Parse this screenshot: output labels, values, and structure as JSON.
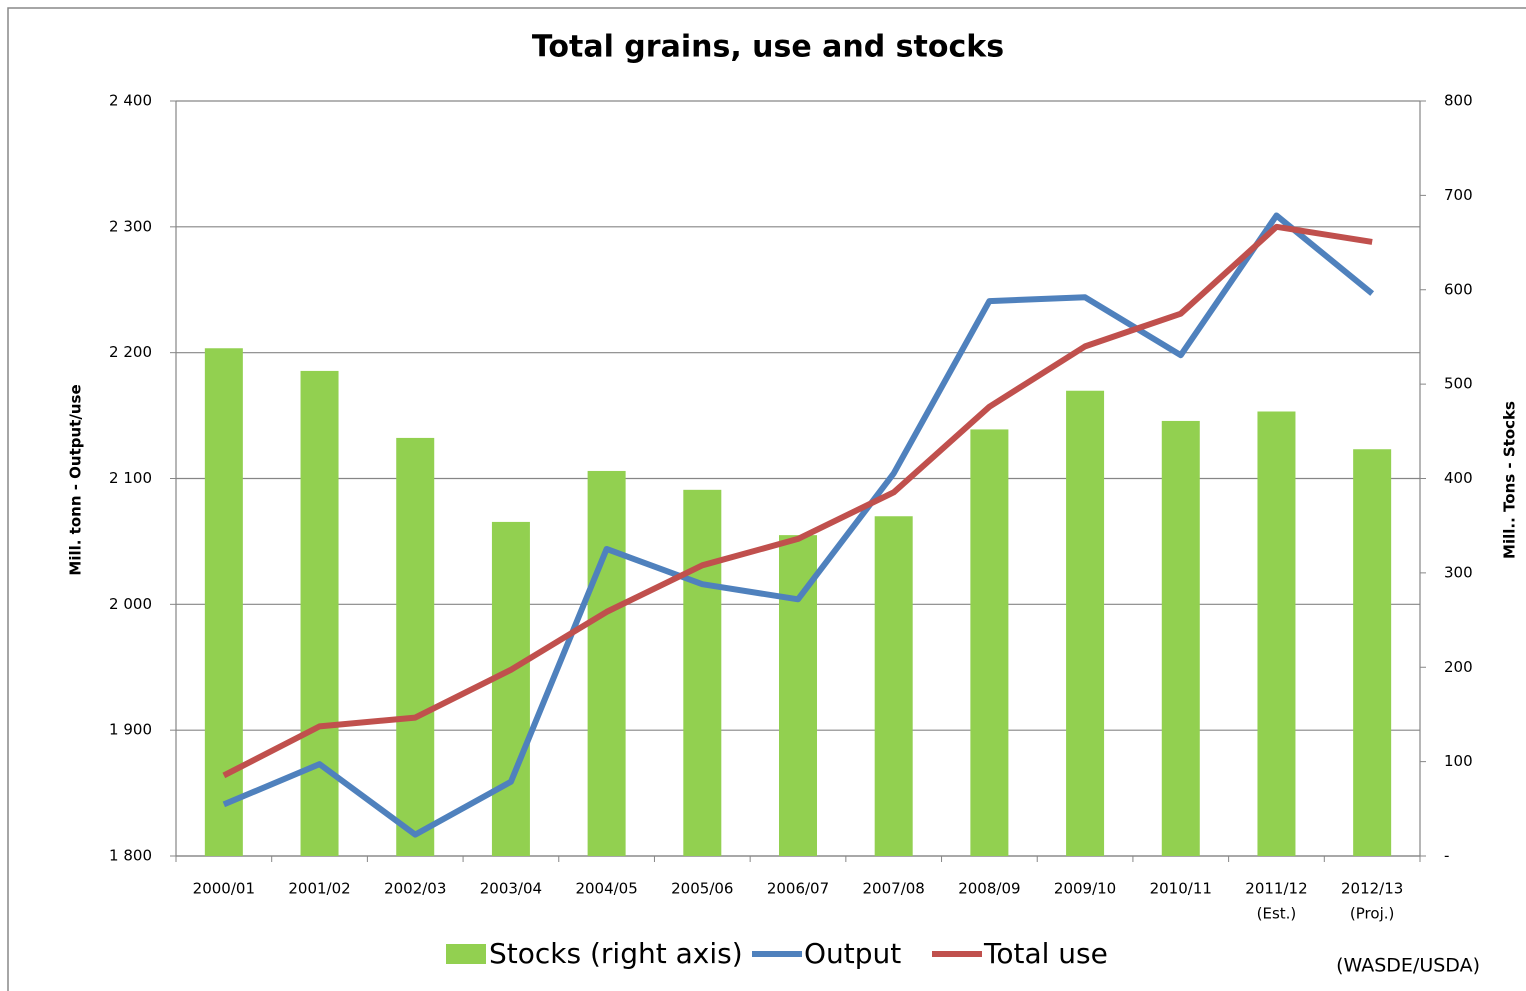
{
  "chart_data": {
    "type": "bar",
    "title": "Total grains, use and stocks",
    "y_label": "Mill. tonn - Output/use",
    "y2_label": "Mill.. Tons - Stocks",
    "source": "(WASDE/USDA)",
    "categories": [
      "2000/01",
      "2001/02",
      "2002/03",
      "2003/04",
      "2004/05",
      "2005/06",
      "2006/07",
      "2007/08",
      "2008/09",
      "2009/10",
      "2010/11",
      "2011/12",
      "2012/13"
    ],
    "category_notes": [
      null,
      null,
      null,
      null,
      null,
      null,
      null,
      null,
      null,
      null,
      null,
      "(Est.)",
      "(Proj.)"
    ],
    "series": [
      {
        "name": "Stocks (right axis)",
        "type": "bar",
        "axis": "y2",
        "color": "#92d050",
        "values": [
          538,
          514,
          443,
          354,
          408,
          388,
          340,
          360,
          452,
          493,
          461,
          471,
          431
        ]
      },
      {
        "name": "Output",
        "type": "line",
        "color": "#4f81bd",
        "values": [
          1841,
          1873,
          1817,
          1859,
          2044,
          2016,
          2004,
          2104,
          2241,
          2244,
          2198,
          2309,
          2247
        ]
      },
      {
        "name": "Total use",
        "type": "line",
        "color": "#c0504d",
        "values": [
          1864,
          1903,
          1910,
          1948,
          1994,
          2031,
          2052,
          2089,
          2157,
          2205,
          2231,
          2300,
          2288
        ]
      }
    ],
    "ylim": [
      1800,
      2400
    ],
    "yticks": [
      {
        "value": 1800,
        "label": "1 800"
      },
      {
        "value": 1900,
        "label": "1 900"
      },
      {
        "value": 2000,
        "label": "2 000"
      },
      {
        "value": 2100,
        "label": "2 100"
      },
      {
        "value": 2200,
        "label": "2 200"
      },
      {
        "value": 2300,
        "label": "2 300"
      },
      {
        "value": 2400,
        "label": "2 400"
      }
    ],
    "y2lim": [
      0,
      800
    ],
    "y2ticks": [
      {
        "value": 0,
        "label": "-"
      },
      100,
      200,
      300,
      400,
      500,
      600,
      700,
      800
    ],
    "grid": true
  }
}
